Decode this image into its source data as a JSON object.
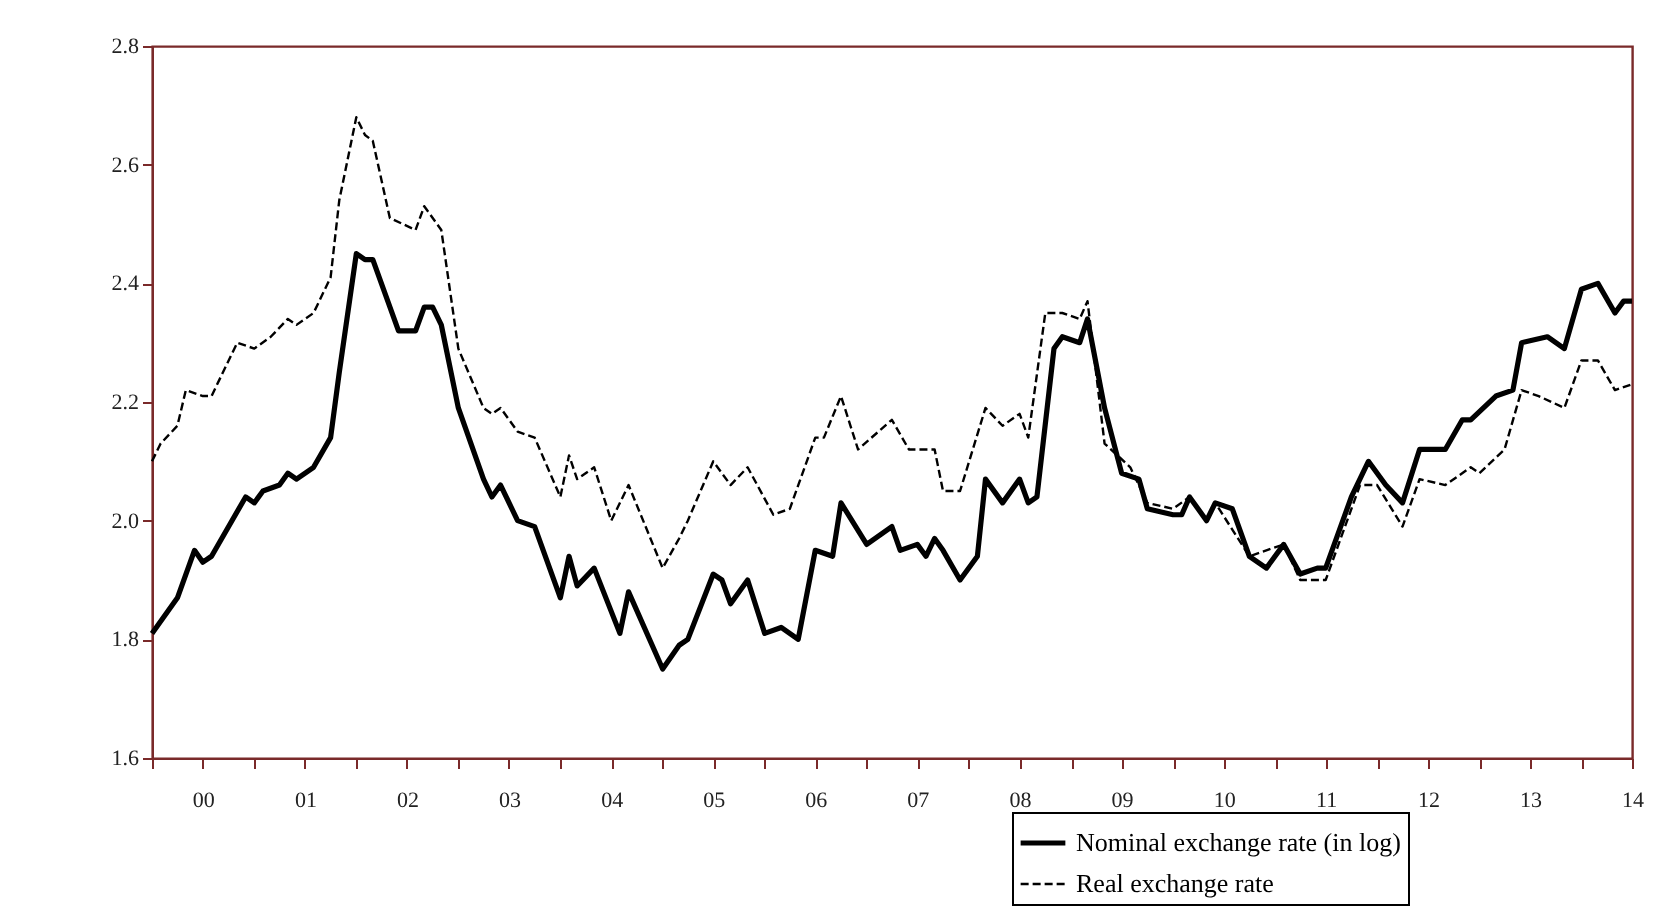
{
  "chart_data": {
    "type": "line",
    "xlim": [
      "2000-01",
      "2014-07"
    ],
    "ylim": [
      1.6,
      2.8
    ],
    "xticks": [
      {
        "value": "2000-01",
        "label": null
      },
      {
        "value": "2000-07",
        "label": "00"
      },
      {
        "value": "2001-01",
        "label": null
      },
      {
        "value": "2001-07",
        "label": "01"
      },
      {
        "value": "2002-01",
        "label": null
      },
      {
        "value": "2002-07",
        "label": "02"
      },
      {
        "value": "2003-01",
        "label": null
      },
      {
        "value": "2003-07",
        "label": "03"
      },
      {
        "value": "2004-01",
        "label": null
      },
      {
        "value": "2004-07",
        "label": "04"
      },
      {
        "value": "2005-01",
        "label": null
      },
      {
        "value": "2005-07",
        "label": "05"
      },
      {
        "value": "2006-01",
        "label": null
      },
      {
        "value": "2006-07",
        "label": "06"
      },
      {
        "value": "2007-01",
        "label": null
      },
      {
        "value": "2007-07",
        "label": "07"
      },
      {
        "value": "2008-01",
        "label": null
      },
      {
        "value": "2008-07",
        "label": "08"
      },
      {
        "value": "2009-01",
        "label": null
      },
      {
        "value": "2009-07",
        "label": "09"
      },
      {
        "value": "2010-01",
        "label": null
      },
      {
        "value": "2010-07",
        "label": "10"
      },
      {
        "value": "2011-01",
        "label": null
      },
      {
        "value": "2011-07",
        "label": "11"
      },
      {
        "value": "2012-01",
        "label": null
      },
      {
        "value": "2012-07",
        "label": "12"
      },
      {
        "value": "2013-01",
        "label": null
      },
      {
        "value": "2013-07",
        "label": "13"
      },
      {
        "value": "2014-01",
        "label": null
      },
      {
        "value": "2014-07",
        "label": "14"
      }
    ],
    "yticks": [
      1.6,
      1.8,
      {
        "value": 2,
        "label": "2.0"
      },
      2.2,
      2.4,
      2.6,
      2.8
    ],
    "grid": false,
    "legend": "bottom right",
    "marker": "none",
    "series": [
      {
        "name": "Nominal exchange rate (in log)",
        "color": "#000000",
        "line_style": "solid",
        "x": [
          "2000-01",
          "2000-04",
          "2000-06",
          "2000-07",
          "2000-08",
          "2000-12",
          "2001-01",
          "2001-02",
          "2001-04",
          "2001-05",
          "2001-06",
          "2001-08",
          "2001-10",
          "2001-11",
          "2002-01",
          "2002-02",
          "2002-03",
          "2002-06",
          "2002-08",
          "2002-09",
          "2002-10",
          "2002-11",
          "2003-01",
          "2003-04",
          "2003-05",
          "2003-06",
          "2003-08",
          "2003-10",
          "2004-01",
          "2004-02",
          "2004-03",
          "2004-05",
          "2004-08",
          "2004-09",
          "2005-01",
          "2005-03",
          "2005-04",
          "2005-07",
          "2005-08",
          "2005-09",
          "2005-11",
          "2006-01",
          "2006-03",
          "2006-05",
          "2006-07",
          "2006-09",
          "2006-10",
          "2007-01",
          "2007-04",
          "2007-05",
          "2007-07",
          "2007-08",
          "2007-09",
          "2007-10",
          "2007-12",
          "2008-02",
          "2008-03",
          "2008-05",
          "2008-07",
          "2008-08",
          "2008-09",
          "2008-11",
          "2008-12",
          "2009-02",
          "2009-03",
          "2009-05",
          "2009-07",
          "2009-09",
          "2009-10",
          "2010-01",
          "2010-02",
          "2010-03",
          "2010-05",
          "2010-06",
          "2010-08",
          "2010-10",
          "2010-12",
          "2011-02",
          "2011-04",
          "2011-06",
          "2011-07",
          "2011-10",
          "2011-12",
          "2012-02",
          "2012-04",
          "2012-06",
          "2012-09",
          "2012-11",
          "2012-12",
          "2013-03",
          "2013-05",
          "2013-06",
          "2013-09",
          "2013-11",
          "2014-01",
          "2014-03",
          "2014-05",
          "2014-06",
          "2014-07"
        ],
        "values": [
          1.81,
          1.87,
          1.95,
          1.93,
          1.94,
          2.04,
          2.03,
          2.05,
          2.06,
          2.08,
          2.07,
          2.09,
          2.14,
          2.25,
          2.45,
          2.44,
          2.44,
          2.32,
          2.32,
          2.36,
          2.36,
          2.33,
          2.19,
          2.07,
          2.04,
          2.06,
          2.0,
          1.99,
          1.87,
          1.94,
          1.89,
          1.92,
          1.81,
          1.88,
          1.75,
          1.79,
          1.8,
          1.91,
          1.9,
          1.86,
          1.9,
          1.81,
          1.82,
          1.8,
          1.95,
          1.94,
          2.03,
          1.96,
          1.99,
          1.95,
          1.96,
          1.94,
          1.97,
          1.95,
          1.9,
          1.94,
          2.07,
          2.03,
          2.07,
          2.03,
          2.04,
          2.29,
          2.31,
          2.3,
          2.34,
          2.19,
          2.08,
          2.07,
          2.02,
          2.01,
          2.01,
          2.04,
          2.0,
          2.03,
          2.02,
          1.94,
          1.92,
          1.96,
          1.91,
          1.92,
          1.92,
          2.04,
          2.1,
          2.06,
          2.03,
          2.12,
          2.12,
          2.17,
          2.17,
          2.21,
          2.22,
          2.3,
          2.31,
          2.29,
          2.39,
          2.4,
          2.35,
          2.37,
          2.37
        ]
      },
      {
        "name": "Real exchange rate",
        "color": "#000000",
        "line_style": "dashed",
        "x": [
          "2000-01",
          "2000-02",
          "2000-04",
          "2000-05",
          "2000-07",
          "2000-08",
          "2000-11",
          "2001-01",
          "2001-03",
          "2001-05",
          "2001-06",
          "2001-08",
          "2001-10",
          "2001-11",
          "2002-01",
          "2002-02",
          "2002-03",
          "2002-05",
          "2002-08",
          "2002-09",
          "2002-11",
          "2003-01",
          "2003-04",
          "2003-05",
          "2003-06",
          "2003-08",
          "2003-10",
          "2004-01",
          "2004-02",
          "2004-03",
          "2004-05",
          "2004-07",
          "2004-09",
          "2005-01",
          "2005-03",
          "2005-04",
          "2005-07",
          "2005-09",
          "2005-11",
          "2006-02",
          "2006-04",
          "2006-07",
          "2006-08",
          "2006-10",
          "2006-12",
          "2007-04",
          "2007-06",
          "2007-09",
          "2007-10",
          "2007-12",
          "2008-03",
          "2008-05",
          "2008-07",
          "2008-08",
          "2008-10",
          "2008-12",
          "2009-02",
          "2009-03",
          "2009-05",
          "2009-08",
          "2009-10",
          "2010-01",
          "2010-03",
          "2010-05",
          "2010-06",
          "2010-10",
          "2011-02",
          "2011-04",
          "2011-07",
          "2011-11",
          "2012-01",
          "2012-04",
          "2012-06",
          "2012-09",
          "2012-12",
          "2013-01",
          "2013-04",
          "2013-06",
          "2013-08",
          "2013-11",
          "2014-01",
          "2014-03",
          "2014-05",
          "2014-07"
        ],
        "values": [
          2.1,
          2.13,
          2.16,
          2.22,
          2.21,
          2.21,
          2.3,
          2.29,
          2.31,
          2.34,
          2.33,
          2.35,
          2.41,
          2.54,
          2.68,
          2.65,
          2.64,
          2.51,
          2.49,
          2.53,
          2.49,
          2.29,
          2.19,
          2.18,
          2.19,
          2.15,
          2.14,
          2.04,
          2.11,
          2.07,
          2.09,
          2.0,
          2.06,
          1.92,
          1.97,
          2.0,
          2.1,
          2.06,
          2.09,
          2.01,
          2.02,
          2.14,
          2.14,
          2.21,
          2.12,
          2.17,
          2.12,
          2.12,
          2.05,
          2.05,
          2.19,
          2.16,
          2.18,
          2.14,
          2.35,
          2.35,
          2.34,
          2.37,
          2.13,
          2.09,
          2.03,
          2.02,
          2.04,
          2.0,
          2.03,
          1.94,
          1.96,
          1.9,
          1.9,
          2.06,
          2.06,
          1.99,
          2.07,
          2.06,
          2.09,
          2.08,
          2.12,
          2.22,
          2.21,
          2.19,
          2.27,
          2.27,
          2.22,
          2.23
        ]
      }
    ]
  }
}
